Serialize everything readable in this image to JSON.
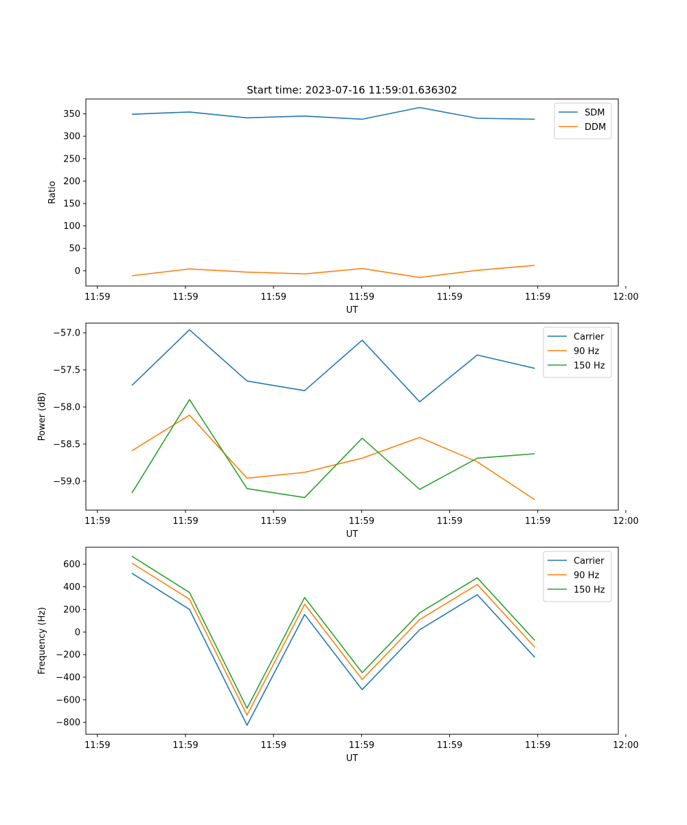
{
  "chart_data": [
    {
      "type": "line",
      "title": "Start time: 2023-07-16 11:59:01.636302",
      "xlabel": "UT",
      "ylabel": "Ratio",
      "x": [
        1,
        2,
        3,
        4,
        5,
        6,
        7,
        8
      ],
      "xlim": [
        0.2,
        9.45
      ],
      "x_ticks": [
        0.4,
        1.93,
        3.46,
        4.99,
        6.52,
        8.05,
        9.58
      ],
      "x_tick_labels": [
        "11:59",
        "11:59",
        "11:59",
        "11:59",
        "11:59",
        "11:59",
        "12:00"
      ],
      "ylim": [
        -34,
        383
      ],
      "y_ticks": [
        0,
        50,
        100,
        150,
        200,
        250,
        300,
        350
      ],
      "y_tick_labels": [
        "0",
        "50",
        "100",
        "150",
        "200",
        "250",
        "300",
        "350"
      ],
      "legend_position": "top-right",
      "series": [
        {
          "name": "SDM",
          "color": "#1f77b4",
          "values": [
            349,
            354,
            341,
            345,
            338,
            364,
            340,
            338
          ]
        },
        {
          "name": "DDM",
          "color": "#ff7f0e",
          "values": [
            -11,
            4,
            -3,
            -7,
            5,
            -15,
            1,
            12
          ]
        }
      ]
    },
    {
      "type": "line",
      "title": "",
      "xlabel": "UT",
      "ylabel": "Power (dB)",
      "x": [
        1,
        2,
        3,
        4,
        5,
        6,
        7,
        8
      ],
      "xlim": [
        0.2,
        9.45
      ],
      "x_ticks": [
        0.4,
        1.93,
        3.46,
        4.99,
        6.52,
        8.05,
        9.58
      ],
      "x_tick_labels": [
        "11:59",
        "11:59",
        "11:59",
        "11:59",
        "11:59",
        "11:59",
        "12:00"
      ],
      "ylim": [
        -59.39,
        -56.87
      ],
      "y_ticks": [
        -59.0,
        -58.5,
        -58.0,
        -57.5,
        -57.0
      ],
      "y_tick_labels": [
        "−59.0",
        "−58.5",
        "−58.0",
        "−57.5",
        "−57.0"
      ],
      "legend_position": "top-right",
      "series": [
        {
          "name": "Carrier",
          "color": "#1f77b4",
          "values": [
            -57.71,
            -56.96,
            -57.65,
            -57.78,
            -57.1,
            -57.93,
            -57.3,
            -57.48
          ]
        },
        {
          "name": "90 Hz",
          "color": "#ff7f0e",
          "values": [
            -58.59,
            -58.11,
            -58.96,
            -58.88,
            -58.69,
            -58.41,
            -58.74,
            -59.25
          ]
        },
        {
          "name": "150 Hz",
          "color": "#2ca02c",
          "values": [
            -59.16,
            -57.9,
            -59.1,
            -59.22,
            -58.42,
            -59.11,
            -58.69,
            -58.63
          ]
        }
      ]
    },
    {
      "type": "line",
      "title": "",
      "xlabel": "UT",
      "ylabel": "Frequency (Hz)",
      "x": [
        1,
        2,
        3,
        4,
        5,
        6,
        7,
        8
      ],
      "xlim": [
        0.2,
        9.45
      ],
      "x_ticks": [
        0.4,
        1.93,
        3.46,
        4.99,
        6.52,
        8.05,
        9.58
      ],
      "x_tick_labels": [
        "11:59",
        "11:59",
        "11:59",
        "11:59",
        "11:59",
        "11:59",
        "12:00"
      ],
      "ylim": [
        -905,
        750
      ],
      "y_ticks": [
        -800,
        -600,
        -400,
        -200,
        0,
        200,
        400,
        600
      ],
      "y_tick_labels": [
        "−800",
        "−600",
        "−400",
        "−200",
        "0",
        "200",
        "400",
        "600"
      ],
      "legend_position": "top-right",
      "series": [
        {
          "name": "Carrier",
          "color": "#1f77b4",
          "values": [
            520,
            200,
            -825,
            155,
            -510,
            20,
            330,
            -225
          ]
        },
        {
          "name": "90 Hz",
          "color": "#ff7f0e",
          "values": [
            610,
            290,
            -735,
            245,
            -420,
            110,
            420,
            -135
          ]
        },
        {
          "name": "150 Hz",
          "color": "#2ca02c",
          "values": [
            670,
            350,
            -675,
            305,
            -360,
            170,
            480,
            -75
          ]
        }
      ]
    }
  ]
}
